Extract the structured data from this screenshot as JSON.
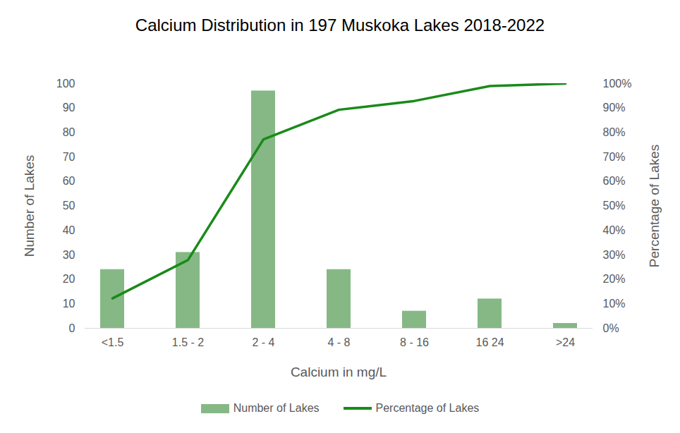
{
  "chart_data": {
    "type": "bar",
    "title": "Calcium Distribution in 197 Muskoka Lakes 2018-2022",
    "x_label": "Calcium in mg/L",
    "y_label": "Number of Lakes",
    "y2_label": "Percentage of Lakes",
    "categories": [
      "<1.5",
      "1.5 - 2",
      "2 - 4",
      "4 - 8",
      "8 - 16",
      "16 24",
      ">24"
    ],
    "series": [
      {
        "name": "Number of Lakes",
        "type": "bar",
        "color": "#86b886",
        "values": [
          24,
          31,
          97,
          24,
          7,
          12,
          2
        ]
      },
      {
        "name": "Percentage of Lakes",
        "type": "line",
        "axis": "y2",
        "color": "#1a8a1a",
        "values": [
          12.2,
          27.9,
          77.2,
          89.3,
          92.9,
          99,
          100
        ]
      }
    ],
    "ylim": [
      0,
      100
    ],
    "yticks": [
      0,
      10,
      20,
      30,
      40,
      50,
      60,
      70,
      80,
      90,
      100
    ],
    "y2lim": [
      0,
      100
    ],
    "y2ticks": [
      {
        "value": 0,
        "label": "0%"
      },
      {
        "value": 10,
        "label": "10%"
      },
      {
        "value": 20,
        "label": "20%"
      },
      {
        "value": 30,
        "label": "30%"
      },
      {
        "value": 40,
        "label": "40%"
      },
      {
        "value": 50,
        "label": "50%"
      },
      {
        "value": 60,
        "label": "60%"
      },
      {
        "value": 70,
        "label": "70%"
      },
      {
        "value": 80,
        "label": "80%"
      },
      {
        "value": 90,
        "label": "90%"
      },
      {
        "value": 100,
        "label": "100%"
      }
    ],
    "grid": false,
    "legend": "bottom"
  }
}
